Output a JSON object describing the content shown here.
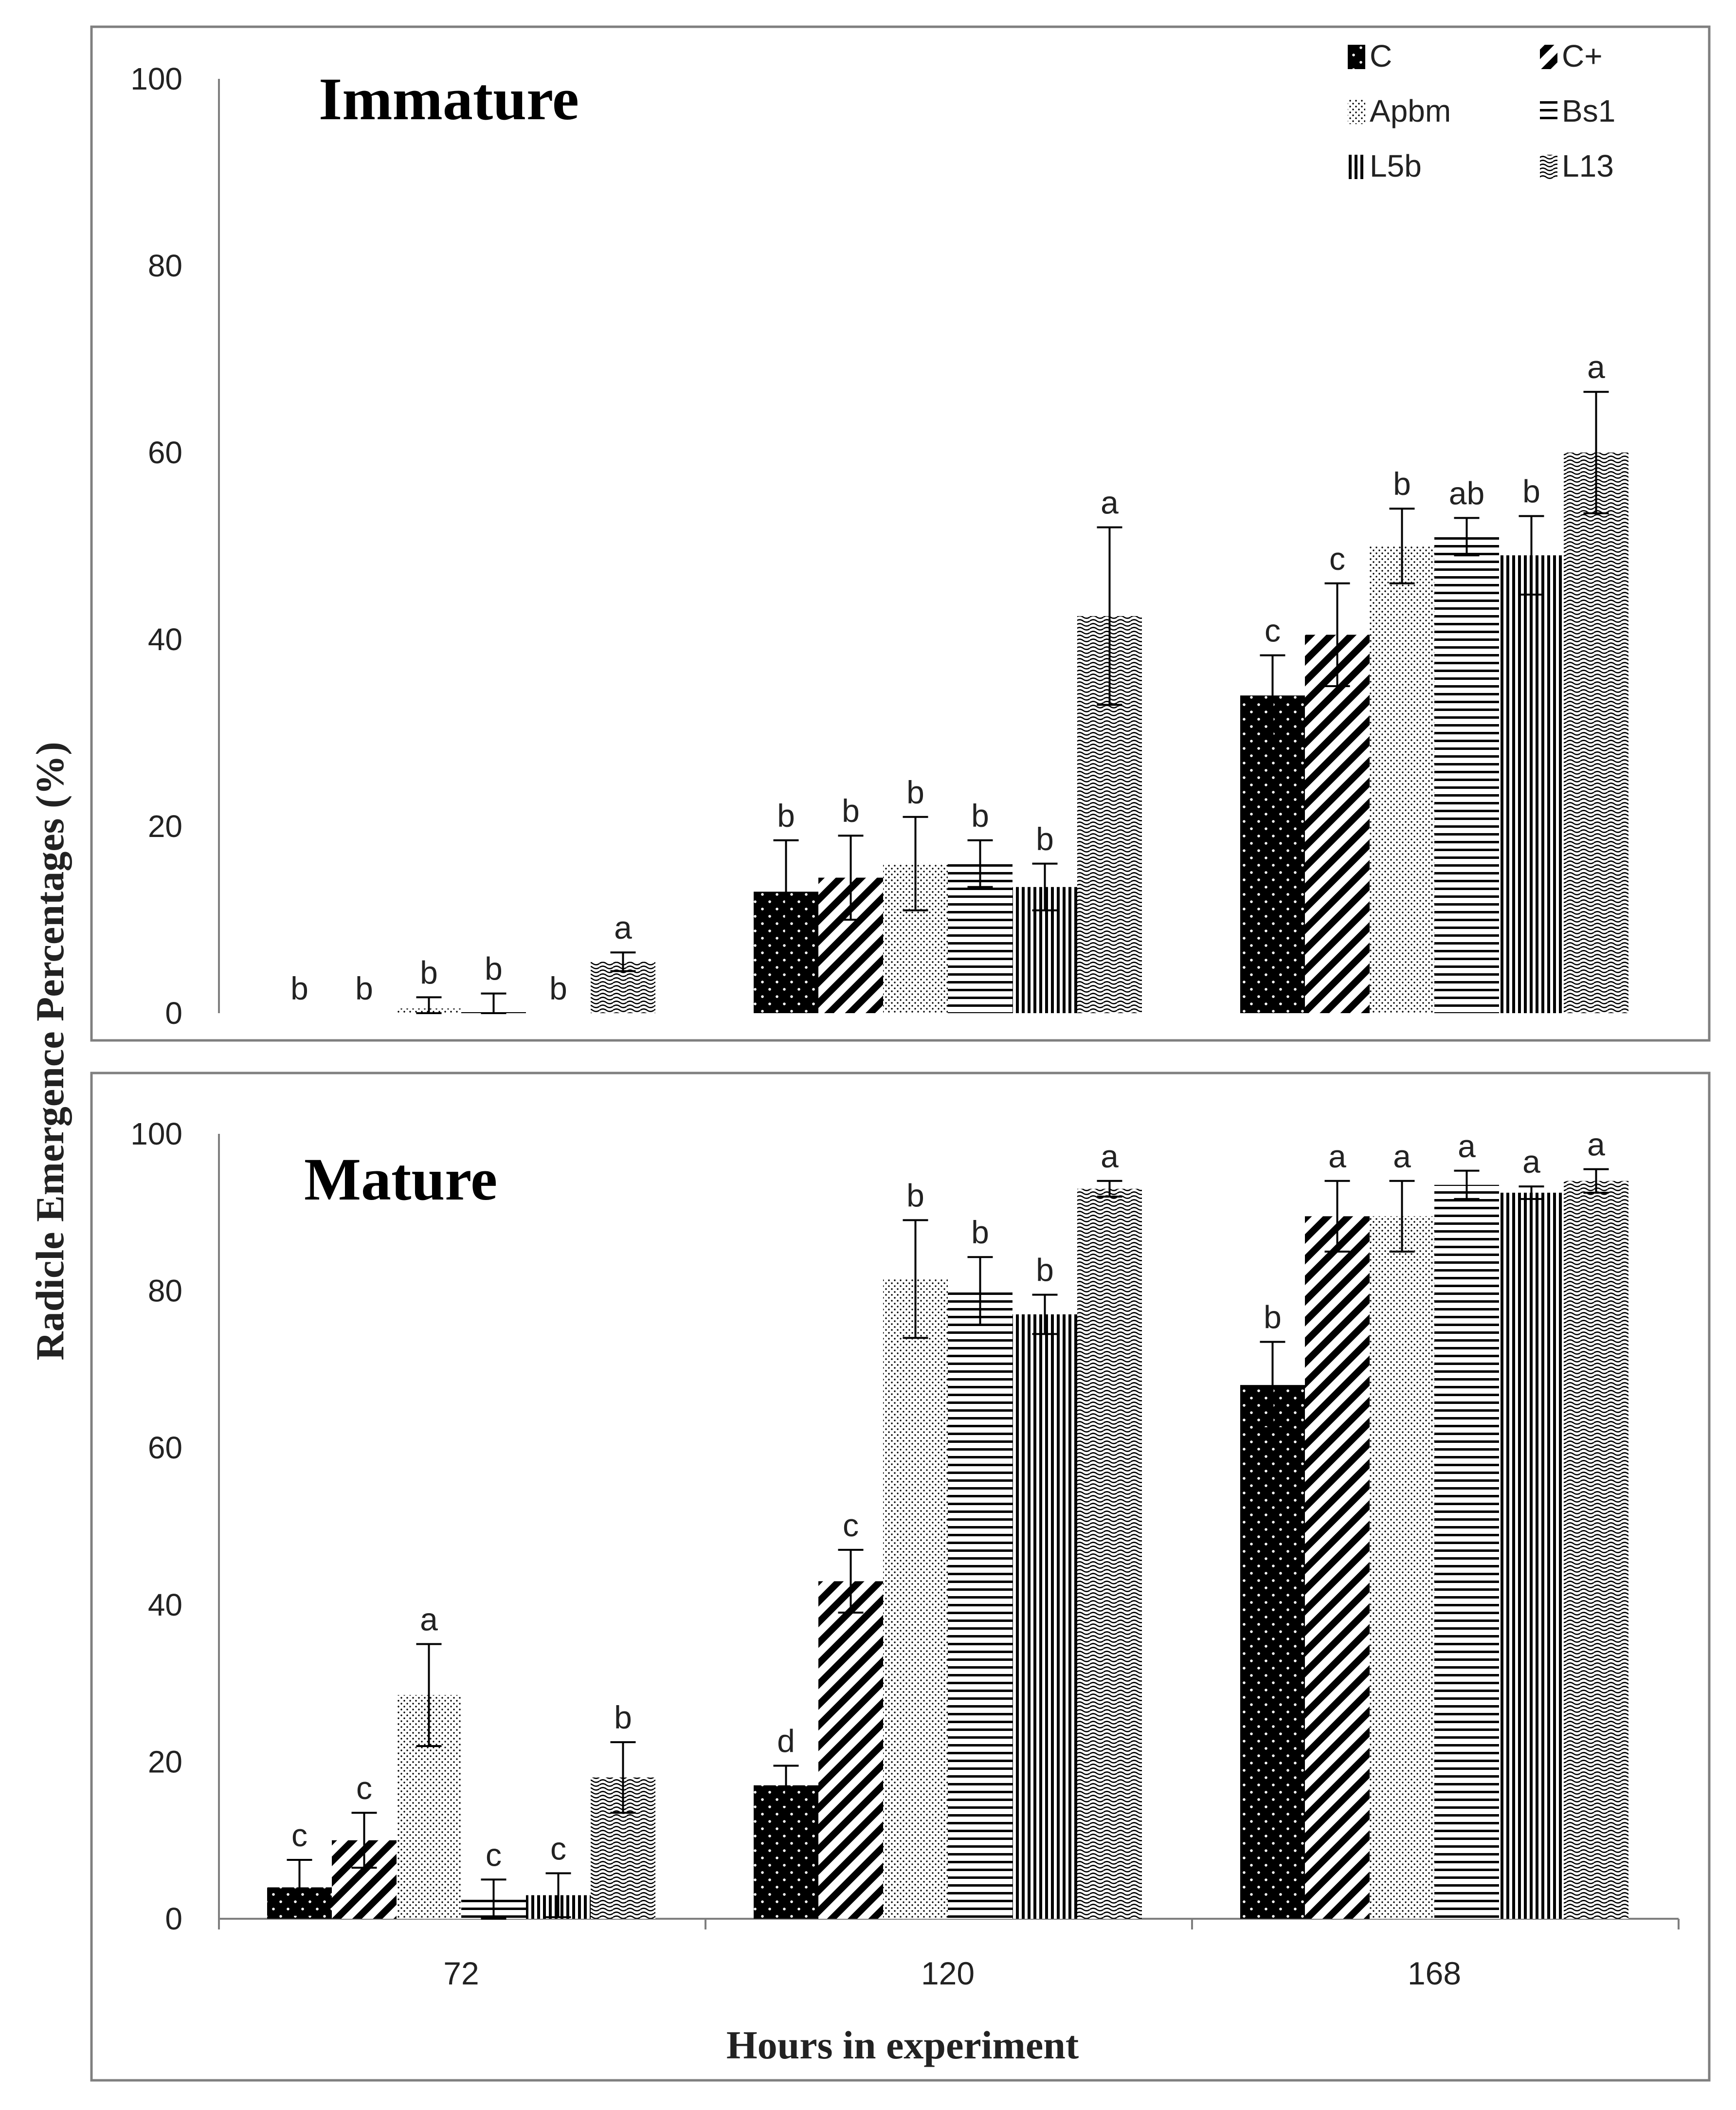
{
  "chart_data": [
    {
      "type": "bar",
      "title": "Immature",
      "ylabel": "Radicle Emergence Percentages (%)",
      "xlabel": "",
      "ylim": [
        0,
        100
      ],
      "yticks": [
        "0",
        "20",
        "40",
        "60",
        "80",
        "100"
      ],
      "categories": [
        "72",
        "120",
        "168"
      ],
      "series": [
        {
          "name": "C",
          "values": [
            0,
            13,
            34
          ],
          "errors": [
            0,
            5.5,
            4.3
          ],
          "letters": [
            "b",
            "b",
            "c"
          ]
        },
        {
          "name": "C+",
          "values": [
            0,
            14.5,
            40.5
          ],
          "errors": [
            0,
            4.5,
            5.5
          ],
          "letters": [
            "b",
            "b",
            "c"
          ]
        },
        {
          "name": "Apbm",
          "values": [
            0.5,
            16,
            50
          ],
          "errors": [
            1.2,
            5,
            4
          ],
          "letters": [
            "b",
            "b",
            "b"
          ]
        },
        {
          "name": "Bs1",
          "values": [
            0.3,
            16,
            51
          ],
          "errors": [
            1.8,
            2.5,
            2
          ],
          "letters": [
            "b",
            "b",
            "ab"
          ]
        },
        {
          "name": "L5b",
          "values": [
            0,
            13.5,
            49
          ],
          "errors": [
            0,
            2.5,
            4.2
          ],
          "letters": [
            "b",
            "b",
            "b"
          ]
        },
        {
          "name": "L13",
          "values": [
            5.5,
            42.5,
            60
          ],
          "errors": [
            1,
            9.5,
            6.5
          ],
          "letters": [
            "a",
            "a",
            "a"
          ]
        }
      ]
    },
    {
      "type": "bar",
      "title": "Mature",
      "ylabel": "Radicle Emergence Percentages (%)",
      "xlabel": "Hours in experiment",
      "ylim": [
        0,
        100
      ],
      "yticks": [
        "0",
        "20",
        "40",
        "60",
        "80",
        "100"
      ],
      "categories": [
        "72",
        "120",
        "168"
      ],
      "series": [
        {
          "name": "C",
          "values": [
            4,
            17,
            68
          ],
          "errors": [
            3.5,
            2.5,
            5.5
          ],
          "letters": [
            "c",
            "d",
            "b"
          ]
        },
        {
          "name": "C+",
          "values": [
            10,
            43,
            89.5
          ],
          "errors": [
            3.5,
            4,
            4.5
          ],
          "letters": [
            "c",
            "c",
            "a"
          ]
        },
        {
          "name": "Apbm",
          "values": [
            28.5,
            81.5,
            89.5
          ],
          "errors": [
            6.5,
            7.5,
            4.5
          ],
          "letters": [
            "a",
            "b",
            "a"
          ]
        },
        {
          "name": "Bs1",
          "values": [
            2.5,
            80,
            93.5
          ],
          "errors": [
            2.5,
            4.3,
            1.8
          ],
          "letters": [
            "c",
            "b",
            "a"
          ]
        },
        {
          "name": "L5b",
          "values": [
            3,
            77,
            92.5
          ],
          "errors": [
            2.8,
            2.5,
            0.8
          ],
          "letters": [
            "c",
            "b",
            "a"
          ]
        },
        {
          "name": "L13",
          "values": [
            18,
            93,
            94
          ],
          "errors": [
            4.5,
            1,
            1.5
          ],
          "letters": [
            "b",
            "a",
            "a"
          ]
        }
      ]
    }
  ],
  "legend": [
    "C",
    "C+",
    "Apbm",
    "Bs1",
    "L5b",
    "L13"
  ],
  "colors": {
    "ink": "#000000",
    "axis": "#7f7f7f",
    "frame": "#7f7f7f",
    "background": "#ffffff"
  }
}
